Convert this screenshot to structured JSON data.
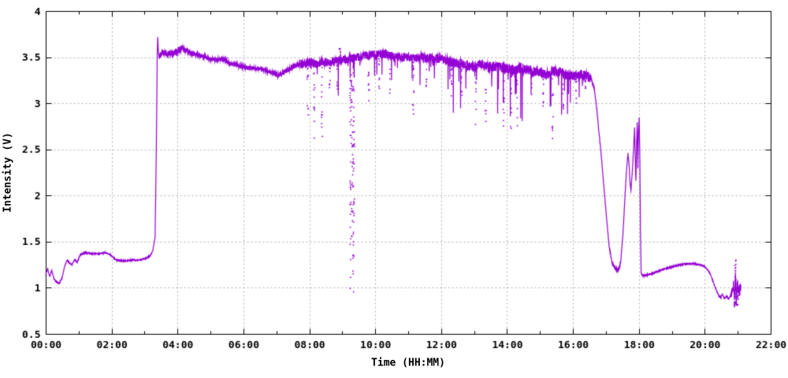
{
  "chart_data": {
    "type": "scatter",
    "title": "",
    "xlabel": "Time (HH:MM)",
    "ylabel": "Intensity (V)",
    "xlim_hours": [
      0,
      22
    ],
    "ylim": [
      0.5,
      4
    ],
    "x_major_ticks_hours": [
      0,
      2,
      4,
      6,
      8,
      10,
      12,
      14,
      16,
      18,
      20,
      22
    ],
    "x_tick_labels": [
      "00:00",
      "02:00",
      "04:00",
      "06:00",
      "08:00",
      "10:00",
      "12:00",
      "14:00",
      "16:00",
      "18:00",
      "20:00",
      "22:00"
    ],
    "x_minor_ticks_hours": [
      1,
      3,
      5,
      7,
      9,
      11,
      13,
      15,
      17,
      19,
      21
    ],
    "y_ticks": [
      0.5,
      1,
      1.5,
      2,
      2.5,
      3,
      3.5,
      4
    ],
    "y_tick_labels": [
      "0.5",
      "1",
      "1.5",
      "2",
      "2.5",
      "3",
      "3.5",
      "4"
    ],
    "grid": {
      "dashed": true,
      "color": "#b0b0b0",
      "x_grid_hours": [
        2,
        4,
        6,
        8,
        10,
        12,
        14,
        16,
        18,
        20
      ],
      "y_grid_values": [
        1,
        1.5,
        2,
        2.5,
        3,
        3.5
      ]
    },
    "series_color": "#9400d3",
    "axis_color": "#000000",
    "seed": 1337,
    "baseline_points": [
      [
        0.0,
        1.14
      ],
      [
        0.06,
        1.21
      ],
      [
        0.12,
        1.12
      ],
      [
        0.18,
        1.19
      ],
      [
        0.25,
        1.1
      ],
      [
        0.33,
        1.06
      ],
      [
        0.42,
        1.05
      ],
      [
        0.5,
        1.11
      ],
      [
        0.58,
        1.24
      ],
      [
        0.65,
        1.3
      ],
      [
        0.72,
        1.27
      ],
      [
        0.8,
        1.25
      ],
      [
        0.88,
        1.31
      ],
      [
        0.95,
        1.27
      ],
      [
        1.05,
        1.36
      ],
      [
        1.2,
        1.38
      ],
      [
        1.4,
        1.37
      ],
      [
        1.6,
        1.37
      ],
      [
        1.8,
        1.38
      ],
      [
        1.95,
        1.36
      ],
      [
        2.05,
        1.33
      ],
      [
        2.15,
        1.3
      ],
      [
        2.35,
        1.29
      ],
      [
        2.6,
        1.3
      ],
      [
        2.85,
        1.3
      ],
      [
        3.05,
        1.32
      ],
      [
        3.15,
        1.34
      ],
      [
        3.25,
        1.4
      ],
      [
        3.32,
        1.55
      ],
      [
        3.36,
        2.6
      ],
      [
        3.385,
        3.55
      ],
      [
        3.4,
        3.72
      ],
      [
        3.42,
        3.55
      ],
      [
        3.47,
        3.52
      ],
      [
        3.55,
        3.56
      ],
      [
        3.7,
        3.54
      ],
      [
        3.85,
        3.55
      ],
      [
        4.0,
        3.57
      ],
      [
        4.12,
        3.6
      ],
      [
        4.25,
        3.57
      ],
      [
        4.4,
        3.55
      ],
      [
        4.6,
        3.53
      ],
      [
        4.8,
        3.51
      ],
      [
        5.0,
        3.48
      ],
      [
        5.2,
        3.47
      ],
      [
        5.35,
        3.48
      ],
      [
        5.55,
        3.44
      ],
      [
        5.75,
        3.42
      ],
      [
        5.95,
        3.4
      ],
      [
        6.15,
        3.39
      ],
      [
        6.35,
        3.38
      ],
      [
        6.55,
        3.37
      ],
      [
        6.75,
        3.35
      ],
      [
        6.9,
        3.33
      ],
      [
        7.05,
        3.3
      ],
      [
        7.2,
        3.33
      ],
      [
        7.4,
        3.38
      ],
      [
        7.6,
        3.41
      ],
      [
        7.8,
        3.43
      ],
      [
        8.0,
        3.44
      ],
      [
        8.2,
        3.43
      ],
      [
        8.4,
        3.45
      ],
      [
        8.6,
        3.44
      ],
      [
        8.8,
        3.46
      ],
      [
        9.0,
        3.47
      ],
      [
        9.2,
        3.48
      ],
      [
        9.4,
        3.49
      ],
      [
        9.6,
        3.51
      ],
      [
        9.8,
        3.52
      ],
      [
        10.0,
        3.53
      ],
      [
        10.2,
        3.54
      ],
      [
        10.4,
        3.53
      ],
      [
        10.6,
        3.51
      ],
      [
        10.8,
        3.5
      ],
      [
        11.0,
        3.5
      ],
      [
        11.2,
        3.49
      ],
      [
        11.4,
        3.5
      ],
      [
        11.6,
        3.49
      ],
      [
        11.8,
        3.49
      ],
      [
        12.0,
        3.48
      ],
      [
        12.2,
        3.46
      ],
      [
        12.4,
        3.44
      ],
      [
        12.6,
        3.43
      ],
      [
        12.8,
        3.41
      ],
      [
        13.0,
        3.4
      ],
      [
        13.2,
        3.42
      ],
      [
        13.4,
        3.39
      ],
      [
        13.6,
        3.4
      ],
      [
        13.8,
        3.39
      ],
      [
        14.0,
        3.38
      ],
      [
        14.2,
        3.36
      ],
      [
        14.4,
        3.38
      ],
      [
        14.6,
        3.37
      ],
      [
        14.8,
        3.35
      ],
      [
        15.0,
        3.34
      ],
      [
        15.2,
        3.32
      ],
      [
        15.4,
        3.35
      ],
      [
        15.6,
        3.34
      ],
      [
        15.8,
        3.31
      ],
      [
        16.0,
        3.3
      ],
      [
        16.2,
        3.31
      ],
      [
        16.4,
        3.3
      ],
      [
        16.55,
        3.27
      ],
      [
        16.65,
        3.15
      ],
      [
        16.72,
        2.95
      ],
      [
        16.8,
        2.65
      ],
      [
        16.88,
        2.35
      ],
      [
        16.95,
        2.05
      ],
      [
        17.02,
        1.75
      ],
      [
        17.1,
        1.45
      ],
      [
        17.18,
        1.28
      ],
      [
        17.28,
        1.21
      ],
      [
        17.38,
        1.2
      ],
      [
        17.45,
        1.28
      ],
      [
        17.52,
        1.6
      ],
      [
        17.58,
        2.0
      ],
      [
        17.63,
        2.3
      ],
      [
        17.67,
        2.45
      ],
      [
        17.7,
        2.35
      ],
      [
        17.73,
        2.15
      ],
      [
        17.76,
        2.06
      ],
      [
        17.8,
        2.25
      ],
      [
        17.84,
        2.5
      ],
      [
        17.87,
        2.73
      ],
      [
        17.89,
        2.4
      ],
      [
        17.91,
        2.15
      ],
      [
        17.93,
        2.55
      ],
      [
        17.95,
        2.8
      ],
      [
        17.97,
        2.3
      ],
      [
        17.99,
        2.7
      ],
      [
        18.01,
        2.84
      ],
      [
        18.03,
        2.4
      ],
      [
        18.05,
        1.6
      ],
      [
        18.07,
        1.16
      ],
      [
        18.12,
        1.13
      ],
      [
        18.25,
        1.14
      ],
      [
        18.45,
        1.16
      ],
      [
        18.65,
        1.19
      ],
      [
        18.85,
        1.21
      ],
      [
        19.05,
        1.23
      ],
      [
        19.25,
        1.25
      ],
      [
        19.45,
        1.26
      ],
      [
        19.65,
        1.26
      ],
      [
        19.85,
        1.25
      ],
      [
        20.0,
        1.23
      ],
      [
        20.1,
        1.19
      ],
      [
        20.18,
        1.14
      ],
      [
        20.26,
        1.06
      ],
      [
        20.34,
        0.98
      ],
      [
        20.42,
        0.92
      ],
      [
        20.48,
        0.89
      ],
      [
        20.54,
        0.93
      ],
      [
        20.6,
        0.88
      ],
      [
        20.66,
        0.91
      ],
      [
        20.72,
        0.88
      ],
      [
        20.78,
        0.91
      ],
      [
        20.83,
        0.95
      ],
      [
        20.87,
        1.05
      ],
      [
        20.9,
        0.85
      ],
      [
        20.93,
        1.2
      ],
      [
        20.96,
        0.8
      ],
      [
        20.99,
        1.1
      ],
      [
        21.02,
        0.95
      ],
      [
        21.06,
        1.01
      ],
      [
        21.1,
        1.0
      ]
    ],
    "noise_segments": [
      [
        0.0,
        3.32,
        0.006,
        0.0,
        0.0
      ],
      [
        3.42,
        4.5,
        0.03,
        0.01,
        0.12
      ],
      [
        4.5,
        6.9,
        0.02,
        0.004,
        0.08
      ],
      [
        6.9,
        7.7,
        0.028,
        0.01,
        0.1
      ],
      [
        7.7,
        12.15,
        0.048,
        0.04,
        0.4
      ],
      [
        12.15,
        16.55,
        0.055,
        0.05,
        0.55
      ],
      [
        16.55,
        18.06,
        0.012,
        0.0,
        0.0
      ],
      [
        18.06,
        20.8,
        0.006,
        0.0,
        0.0
      ],
      [
        20.8,
        21.1,
        0.05,
        0.1,
        0.15
      ]
    ],
    "dropouts": [
      [
        7.95,
        2.85,
        10,
        0.02
      ],
      [
        8.15,
        2.62,
        12,
        0.02
      ],
      [
        8.38,
        2.56,
        12,
        0.02
      ],
      [
        8.62,
        3.02,
        8,
        0.015
      ],
      [
        8.85,
        2.92,
        8,
        0.015
      ],
      [
        9.3,
        0.95,
        120,
        0.07
      ],
      [
        9.8,
        2.88,
        10,
        0.02
      ],
      [
        10.12,
        2.96,
        8,
        0.015
      ],
      [
        10.45,
        3.1,
        6,
        0.012
      ],
      [
        11.15,
        2.86,
        16,
        0.025
      ],
      [
        11.55,
        3.05,
        6,
        0.012
      ],
      [
        12.32,
        3.0,
        8,
        0.015
      ],
      [
        12.62,
        2.95,
        8,
        0.015
      ],
      [
        13.05,
        2.65,
        10,
        0.02
      ],
      [
        13.35,
        2.8,
        8,
        0.015
      ],
      [
        13.9,
        2.6,
        14,
        0.025
      ],
      [
        14.12,
        2.66,
        10,
        0.02
      ],
      [
        14.3,
        2.72,
        8,
        0.015
      ],
      [
        14.75,
        3.0,
        8,
        0.015
      ],
      [
        15.1,
        2.9,
        8,
        0.015
      ],
      [
        15.38,
        2.56,
        10,
        0.02
      ],
      [
        15.7,
        2.9,
        8,
        0.015
      ],
      [
        16.1,
        3.0,
        8,
        0.015
      ],
      [
        16.38,
        3.05,
        6,
        0.012
      ],
      [
        20.92,
        0.78,
        20,
        0.02
      ],
      [
        21.0,
        0.8,
        16,
        0.015
      ]
    ],
    "upshots": [
      [
        8.93,
        3.62,
        10,
        0.02
      ],
      [
        20.93,
        1.3,
        12,
        0.02
      ]
    ]
  }
}
